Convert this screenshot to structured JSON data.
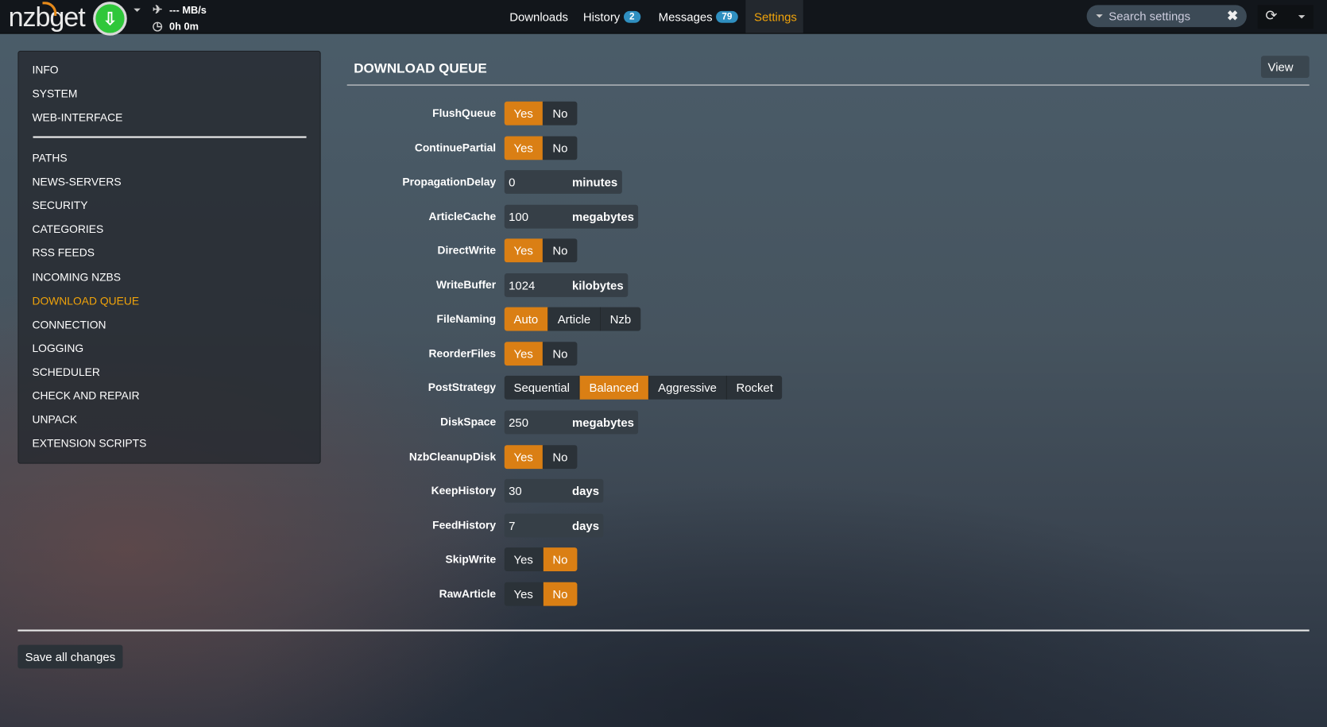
{
  "app": {
    "logo": "nzbget",
    "speed": "--- MB/s",
    "time": "0h 0m"
  },
  "nav": {
    "downloads": "Downloads",
    "history": "History",
    "history_count": "2",
    "messages": "Messages",
    "messages_count": "79",
    "settings": "Settings"
  },
  "search": {
    "placeholder": "Search settings"
  },
  "sidebar": {
    "items": [
      "INFO",
      "SYSTEM",
      "WEB-INTERFACE"
    ],
    "sections": [
      "PATHS",
      "NEWS-SERVERS",
      "SECURITY",
      "CATEGORIES",
      "RSS FEEDS",
      "INCOMING NZBS",
      "DOWNLOAD QUEUE",
      "CONNECTION",
      "LOGGING",
      "SCHEDULER",
      "CHECK AND REPAIR",
      "UNPACK",
      "EXTENSION SCRIPTS"
    ],
    "active": "DOWNLOAD QUEUE"
  },
  "main": {
    "title": "DOWNLOAD QUEUE",
    "view_label": "View",
    "save_label": "Save all changes",
    "options": [
      {
        "name": "FlushQueue",
        "type": "switch",
        "choices": [
          "Yes",
          "No"
        ],
        "value": "Yes"
      },
      {
        "name": "ContinuePartial",
        "type": "switch",
        "choices": [
          "Yes",
          "No"
        ],
        "value": "Yes"
      },
      {
        "name": "PropagationDelay",
        "type": "number",
        "value": "0",
        "unit": "minutes"
      },
      {
        "name": "ArticleCache",
        "type": "number",
        "value": "100",
        "unit": "megabytes"
      },
      {
        "name": "DirectWrite",
        "type": "switch",
        "choices": [
          "Yes",
          "No"
        ],
        "value": "Yes"
      },
      {
        "name": "WriteBuffer",
        "type": "number",
        "value": "1024",
        "unit": "kilobytes"
      },
      {
        "name": "FileNaming",
        "type": "switch",
        "choices": [
          "Auto",
          "Article",
          "Nzb"
        ],
        "value": "Auto"
      },
      {
        "name": "ReorderFiles",
        "type": "switch",
        "choices": [
          "Yes",
          "No"
        ],
        "value": "Yes"
      },
      {
        "name": "PostStrategy",
        "type": "switch",
        "choices": [
          "Sequential",
          "Balanced",
          "Aggressive",
          "Rocket"
        ],
        "value": "Balanced"
      },
      {
        "name": "DiskSpace",
        "type": "number",
        "value": "250",
        "unit": "megabytes"
      },
      {
        "name": "NzbCleanupDisk",
        "type": "switch",
        "choices": [
          "Yes",
          "No"
        ],
        "value": "Yes"
      },
      {
        "name": "KeepHistory",
        "type": "number",
        "value": "30",
        "unit": "days"
      },
      {
        "name": "FeedHistory",
        "type": "number",
        "value": "7",
        "unit": "days"
      },
      {
        "name": "SkipWrite",
        "type": "switch",
        "choices": [
          "Yes",
          "No"
        ],
        "value": "No"
      },
      {
        "name": "RawArticle",
        "type": "switch",
        "choices": [
          "Yes",
          "No"
        ],
        "value": "No"
      }
    ]
  },
  "colors": {
    "accent": "#da7f14",
    "active_text": "#f0a30a",
    "badge": "#2f8fc0",
    "download_button": "#2fc73a"
  }
}
